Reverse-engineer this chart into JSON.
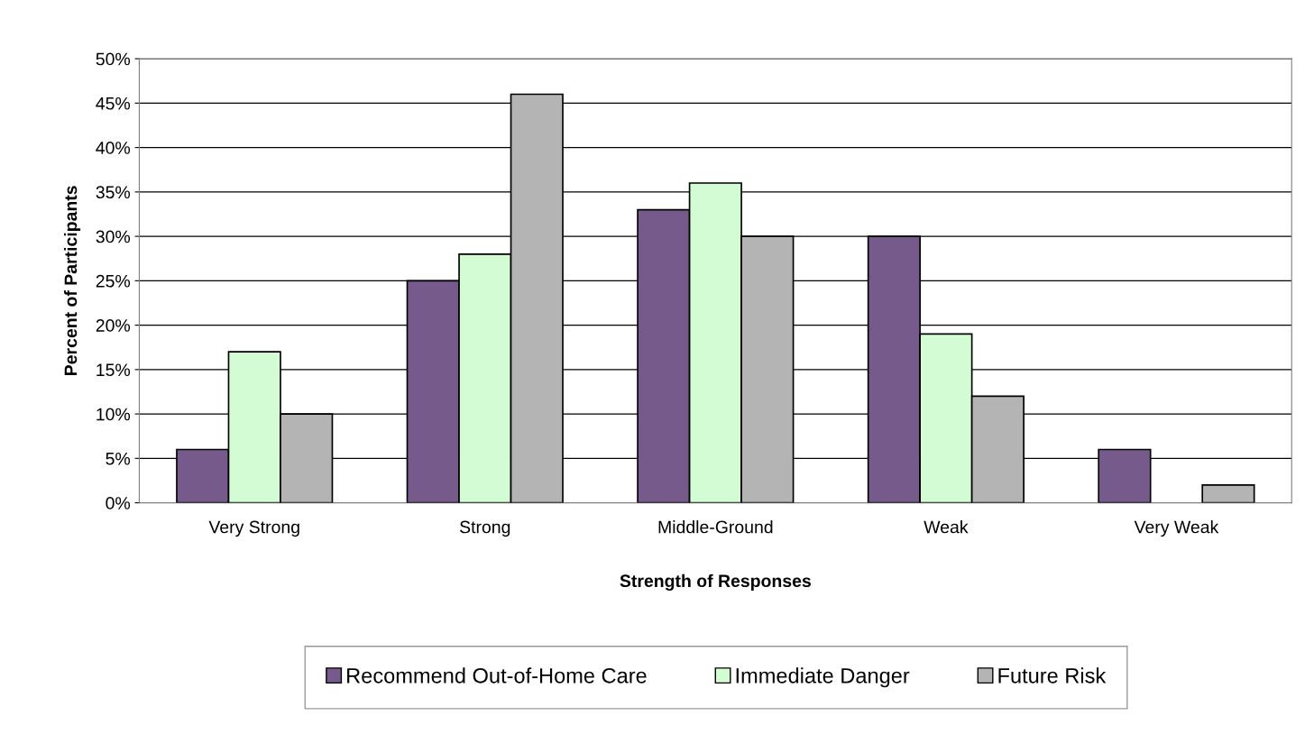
{
  "chart_data": {
    "type": "bar",
    "xlabel": "Strength of Responses",
    "ylabel": "Percent of Participants",
    "categories": [
      "Very Strong",
      "Strong",
      "Middle-Ground",
      "Weak",
      "Very Weak"
    ],
    "series": [
      {
        "name": "Recommend Out-of-Home Care",
        "color": "#765a8c",
        "values": [
          6,
          25,
          33,
          30,
          6
        ]
      },
      {
        "name": "Immediate Danger",
        "color": "#d4fcd4",
        "values": [
          17,
          28,
          36,
          19,
          null
        ]
      },
      {
        "name": "Future Risk",
        "color": "#b4b4b4",
        "values": [
          10,
          46,
          30,
          12,
          2
        ]
      }
    ],
    "ylim": [
      0,
      50
    ],
    "yticks": [
      {
        "value": 0,
        "label": "0%"
      },
      {
        "value": 5,
        "label": "5%"
      },
      {
        "value": 10,
        "label": "10%"
      },
      {
        "value": 15,
        "label": "15%"
      },
      {
        "value": 20,
        "label": "20%"
      },
      {
        "value": 25,
        "label": "25%"
      },
      {
        "value": 30,
        "label": "30%"
      },
      {
        "value": 35,
        "label": "35%"
      },
      {
        "value": 40,
        "label": "40%"
      },
      {
        "value": 45,
        "label": "45%"
      },
      {
        "value": 50,
        "label": "50%"
      }
    ],
    "grid": "y",
    "legend": "bottom"
  }
}
